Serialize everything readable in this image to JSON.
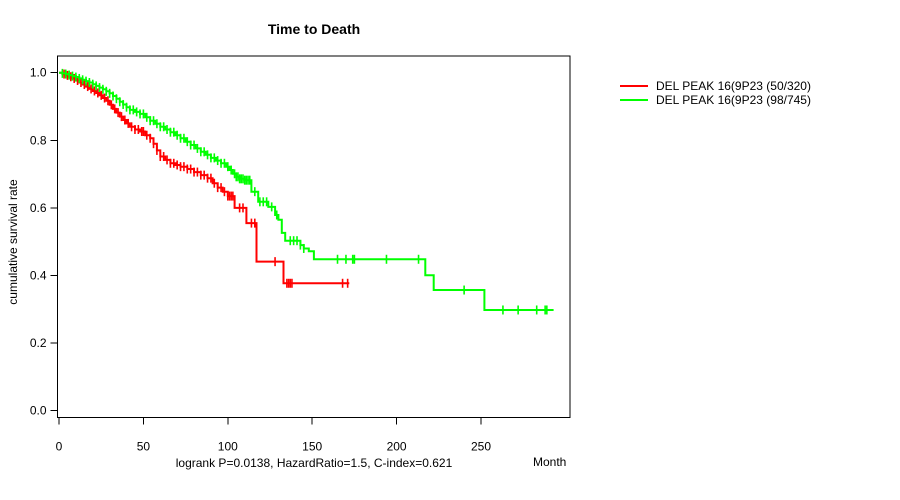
{
  "chart_data": {
    "type": "line",
    "subtype": "kaplan_meier_step",
    "title": "Time to Death",
    "xlabel": "Month",
    "ylabel": "cumulative survival rate",
    "annotation": "logrank P=0.0138, HazardRatio=1.5, C-index=0.621",
    "x_ticks": [
      0,
      50,
      100,
      150,
      200,
      250
    ],
    "y_ticks": [
      0.0,
      0.2,
      0.4,
      0.6,
      0.8,
      1.0
    ],
    "xlim": [
      0,
      300
    ],
    "ylim": [
      0,
      1.0
    ],
    "grid": false,
    "legend_position": "right-outside-top",
    "series": [
      {
        "label": "DEL PEAK 16(9P23 (50/320)",
        "color": "#ff0000",
        "points": [
          [
            0,
            1.0
          ],
          [
            2,
            0.996
          ],
          [
            4,
            0.992
          ],
          [
            6,
            0.988
          ],
          [
            8,
            0.983
          ],
          [
            10,
            0.977
          ],
          [
            12,
            0.971
          ],
          [
            14,
            0.965
          ],
          [
            16,
            0.959
          ],
          [
            18,
            0.952
          ],
          [
            20,
            0.946
          ],
          [
            22,
            0.94
          ],
          [
            24,
            0.933
          ],
          [
            26,
            0.925
          ],
          [
            28,
            0.917
          ],
          [
            30,
            0.905
          ],
          [
            32,
            0.893
          ],
          [
            34,
            0.882
          ],
          [
            36,
            0.87
          ],
          [
            38,
            0.86
          ],
          [
            40,
            0.85
          ],
          [
            42,
            0.84
          ],
          [
            45,
            0.832
          ],
          [
            48,
            0.826
          ],
          [
            51,
            0.815
          ],
          [
            54,
            0.806
          ],
          [
            56,
            0.79
          ],
          [
            58,
            0.77
          ],
          [
            60,
            0.752
          ],
          [
            63,
            0.742
          ],
          [
            66,
            0.732
          ],
          [
            69,
            0.727
          ],
          [
            72,
            0.722
          ],
          [
            76,
            0.715
          ],
          [
            80,
            0.706
          ],
          [
            84,
            0.697
          ],
          [
            88,
            0.688
          ],
          [
            91,
            0.673
          ],
          [
            94,
            0.66
          ],
          [
            97,
            0.648
          ],
          [
            100,
            0.635
          ],
          [
            104,
            0.6
          ],
          [
            111,
            0.555
          ],
          [
            117,
            0.441
          ],
          [
            133,
            0.377
          ],
          [
            172,
            0.377
          ]
        ],
        "censor_months": [
          3,
          5,
          7,
          9,
          11,
          13,
          15,
          17,
          19,
          21,
          23,
          25,
          27,
          29,
          31,
          33,
          35,
          37,
          39,
          41,
          43,
          45,
          47,
          49,
          50,
          52,
          54,
          56,
          58,
          60,
          62,
          64,
          66,
          68,
          70,
          72,
          74,
          76,
          78,
          80,
          82,
          84,
          86,
          88,
          90,
          92,
          94,
          96,
          98,
          100,
          101,
          102,
          103,
          107,
          109,
          114,
          116,
          128,
          135,
          136,
          137,
          138,
          168,
          171
        ]
      },
      {
        "label": "DEL PEAK 16(9P23 (98/745)",
        "color": "#00ff00",
        "points": [
          [
            0,
            1.0
          ],
          [
            2,
            0.998
          ],
          [
            4,
            0.996
          ],
          [
            6,
            0.993
          ],
          [
            8,
            0.99
          ],
          [
            10,
            0.987
          ],
          [
            12,
            0.983
          ],
          [
            14,
            0.979
          ],
          [
            16,
            0.975
          ],
          [
            18,
            0.971
          ],
          [
            20,
            0.966
          ],
          [
            22,
            0.961
          ],
          [
            24,
            0.956
          ],
          [
            26,
            0.951
          ],
          [
            28,
            0.945
          ],
          [
            30,
            0.939
          ],
          [
            32,
            0.931
          ],
          [
            34,
            0.923
          ],
          [
            36,
            0.914
          ],
          [
            38,
            0.906
          ],
          [
            40,
            0.898
          ],
          [
            42,
            0.89
          ],
          [
            45,
            0.884
          ],
          [
            48,
            0.878
          ],
          [
            51,
            0.868
          ],
          [
            54,
            0.858
          ],
          [
            57,
            0.849
          ],
          [
            60,
            0.84
          ],
          [
            63,
            0.832
          ],
          [
            66,
            0.824
          ],
          [
            69,
            0.815
          ],
          [
            72,
            0.806
          ],
          [
            75,
            0.796
          ],
          [
            78,
            0.786
          ],
          [
            81,
            0.776
          ],
          [
            84,
            0.766
          ],
          [
            87,
            0.757
          ],
          [
            90,
            0.748
          ],
          [
            93,
            0.74
          ],
          [
            96,
            0.732
          ],
          [
            99,
            0.722
          ],
          [
            101,
            0.712
          ],
          [
            103,
            0.701
          ],
          [
            105,
            0.692
          ],
          [
            107,
            0.686
          ],
          [
            110,
            0.682
          ],
          [
            114,
            0.648
          ],
          [
            118,
            0.618
          ],
          [
            124,
            0.603
          ],
          [
            128,
            0.579
          ],
          [
            130,
            0.565
          ],
          [
            132,
            0.526
          ],
          [
            134,
            0.503
          ],
          [
            143,
            0.49
          ],
          [
            145,
            0.48
          ],
          [
            148,
            0.472
          ],
          [
            151,
            0.448
          ],
          [
            217,
            0.401
          ],
          [
            222,
            0.357
          ],
          [
            252,
            0.298
          ],
          [
            293,
            0.298
          ]
        ],
        "censor_months": [
          2,
          4,
          6,
          8,
          10,
          12,
          14,
          16,
          18,
          20,
          22,
          24,
          26,
          28,
          30,
          32,
          34,
          36,
          38,
          40,
          42,
          44,
          46,
          48,
          50,
          52,
          54,
          56,
          58,
          60,
          62,
          64,
          66,
          68,
          70,
          72,
          74,
          76,
          78,
          80,
          82,
          84,
          86,
          88,
          90,
          92,
          94,
          96,
          98,
          100,
          102,
          104,
          105,
          106,
          107,
          108,
          109,
          110,
          111,
          112,
          113,
          116,
          119,
          121,
          123,
          126,
          129,
          137,
          139,
          141,
          143,
          145,
          165,
          170,
          174,
          175,
          194,
          213,
          240,
          263,
          272,
          283,
          288,
          289
        ]
      }
    ]
  }
}
